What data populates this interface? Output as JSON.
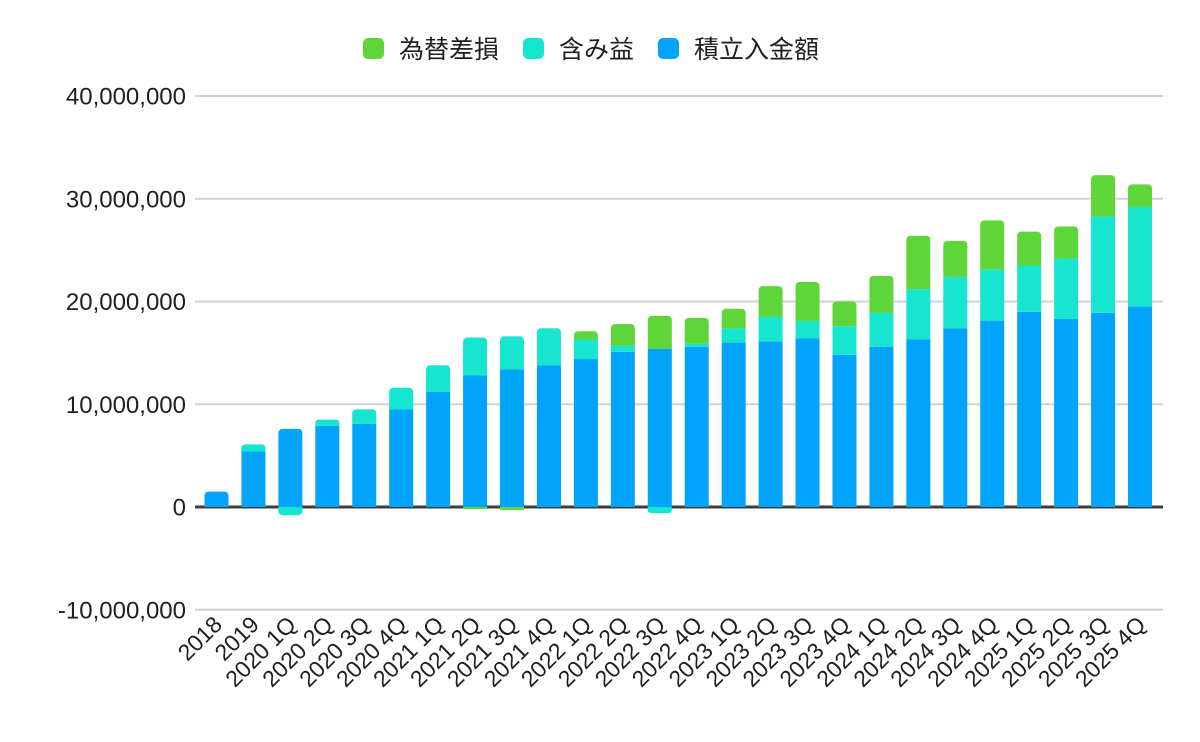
{
  "chart_data": {
    "type": "bar",
    "stacked": true,
    "title": "",
    "legend_position": "top",
    "grid": true,
    "background": "#ffffff",
    "categories": [
      "2018",
      "2019",
      "2020 1Q",
      "2020 2Q",
      "2020 3Q",
      "2020 4Q",
      "2021 1Q",
      "2021 2Q",
      "2021 3Q",
      "2021 4Q",
      "2022 1Q",
      "2022 2Q",
      "2022 3Q",
      "2022 4Q",
      "2023 1Q",
      "2023 2Q",
      "2023 3Q",
      "2023 4Q",
      "2024 1Q",
      "2024 2Q",
      "2024 3Q",
      "2024 4Q",
      "2025 1Q",
      "2025 2Q",
      "2025 3Q",
      "2025 4Q"
    ],
    "series": [
      {
        "name": "積立入金額",
        "color": "#00A4FA",
        "values": [
          1500000,
          5400000,
          7600000,
          7900000,
          8100000,
          9500000,
          11200000,
          12800000,
          13400000,
          13800000,
          14400000,
          15100000,
          15400000,
          15600000,
          16000000,
          16100000,
          16400000,
          14800000,
          15600000,
          16300000,
          17400000,
          18100000,
          19000000,
          18300000,
          18900000,
          19500000
        ]
      },
      {
        "name": "含み益",
        "color": "#16E6CF",
        "values": [
          0,
          700000,
          -800000,
          600000,
          1400000,
          2100000,
          2600000,
          3700000,
          3200000,
          3600000,
          1900000,
          600000,
          -600000,
          300000,
          1400000,
          2400000,
          1700000,
          2800000,
          3300000,
          4900000,
          5000000,
          5000000,
          4500000,
          5900000,
          9400000,
          9700000
        ]
      },
      {
        "name": "為替差損",
        "color": "#5ED639",
        "values": [
          0,
          0,
          0,
          0,
          0,
          0,
          0,
          -200000,
          -300000,
          0,
          800000,
          2100000,
          3200000,
          2500000,
          1900000,
          3000000,
          3800000,
          2400000,
          3600000,
          5200000,
          3500000,
          4800000,
          3300000,
          3100000,
          4000000,
          2200000
        ]
      }
    ],
    "y_axis": {
      "min": -10000000,
      "max": 40000000,
      "tick_step": 10000000,
      "ticks": [
        {
          "value": -10000000,
          "label": "-10,000,000"
        },
        {
          "value": 0,
          "label": "0"
        },
        {
          "value": 10000000,
          "label": "10,000,000"
        },
        {
          "value": 20000000,
          "label": "20,000,000"
        },
        {
          "value": 30000000,
          "label": "30,000,000"
        },
        {
          "value": 40000000,
          "label": "40,000,000"
        }
      ]
    },
    "colors": {
      "gridline": "#d2d2d2",
      "zero_line": "#3c3c3c",
      "text": "#1f1f1f"
    }
  }
}
